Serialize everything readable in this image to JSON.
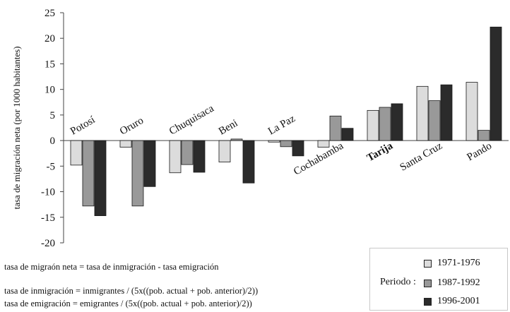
{
  "chart_data": {
    "type": "bar",
    "ylabel": "tasa de migración neta (por 1000 habitantes)",
    "ylim": [
      -20,
      25
    ],
    "yticks": [
      -20,
      -15,
      -10,
      -5,
      0,
      5,
      10,
      15,
      20,
      25
    ],
    "grid": false,
    "legend_placement": "bottom-right",
    "legend_title": "Periodo :",
    "categories": [
      "Potosí",
      "Oruro",
      "Chuquisaca",
      "Beni",
      "La Paz",
      "Cochabamba",
      "Tarija",
      "Santa Cruz",
      "Pando"
    ],
    "highlighted_category": "Tarija",
    "series": [
      {
        "name": "1971-1976",
        "color": "#dcdcdc",
        "values": [
          -4.8,
          -1.3,
          -6.3,
          -4.2,
          -0.3,
          -1.3,
          5.9,
          10.6,
          11.4
        ]
      },
      {
        "name": "1987-1992",
        "color": "#999999",
        "values": [
          -12.8,
          -12.8,
          -4.7,
          0.3,
          -1.2,
          4.8,
          6.5,
          7.8,
          2.0
        ]
      },
      {
        "name": "1996-2001",
        "color": "#2b2b2b",
        "values": [
          -14.7,
          -9.0,
          -6.2,
          -8.3,
          -3.0,
          2.4,
          7.2,
          10.9,
          22.2
        ]
      }
    ]
  },
  "notes": {
    "net": "tasa de migraón neta = tasa de inmigración - tasa emigración",
    "immigration": "tasa de inmigración = inmigrantes / (5x((pob. actual + pob. anterior)/2))",
    "emigration": "tasa de emigración = emigrantes / (5x((pob. actual + pob. anterior)/2))"
  }
}
